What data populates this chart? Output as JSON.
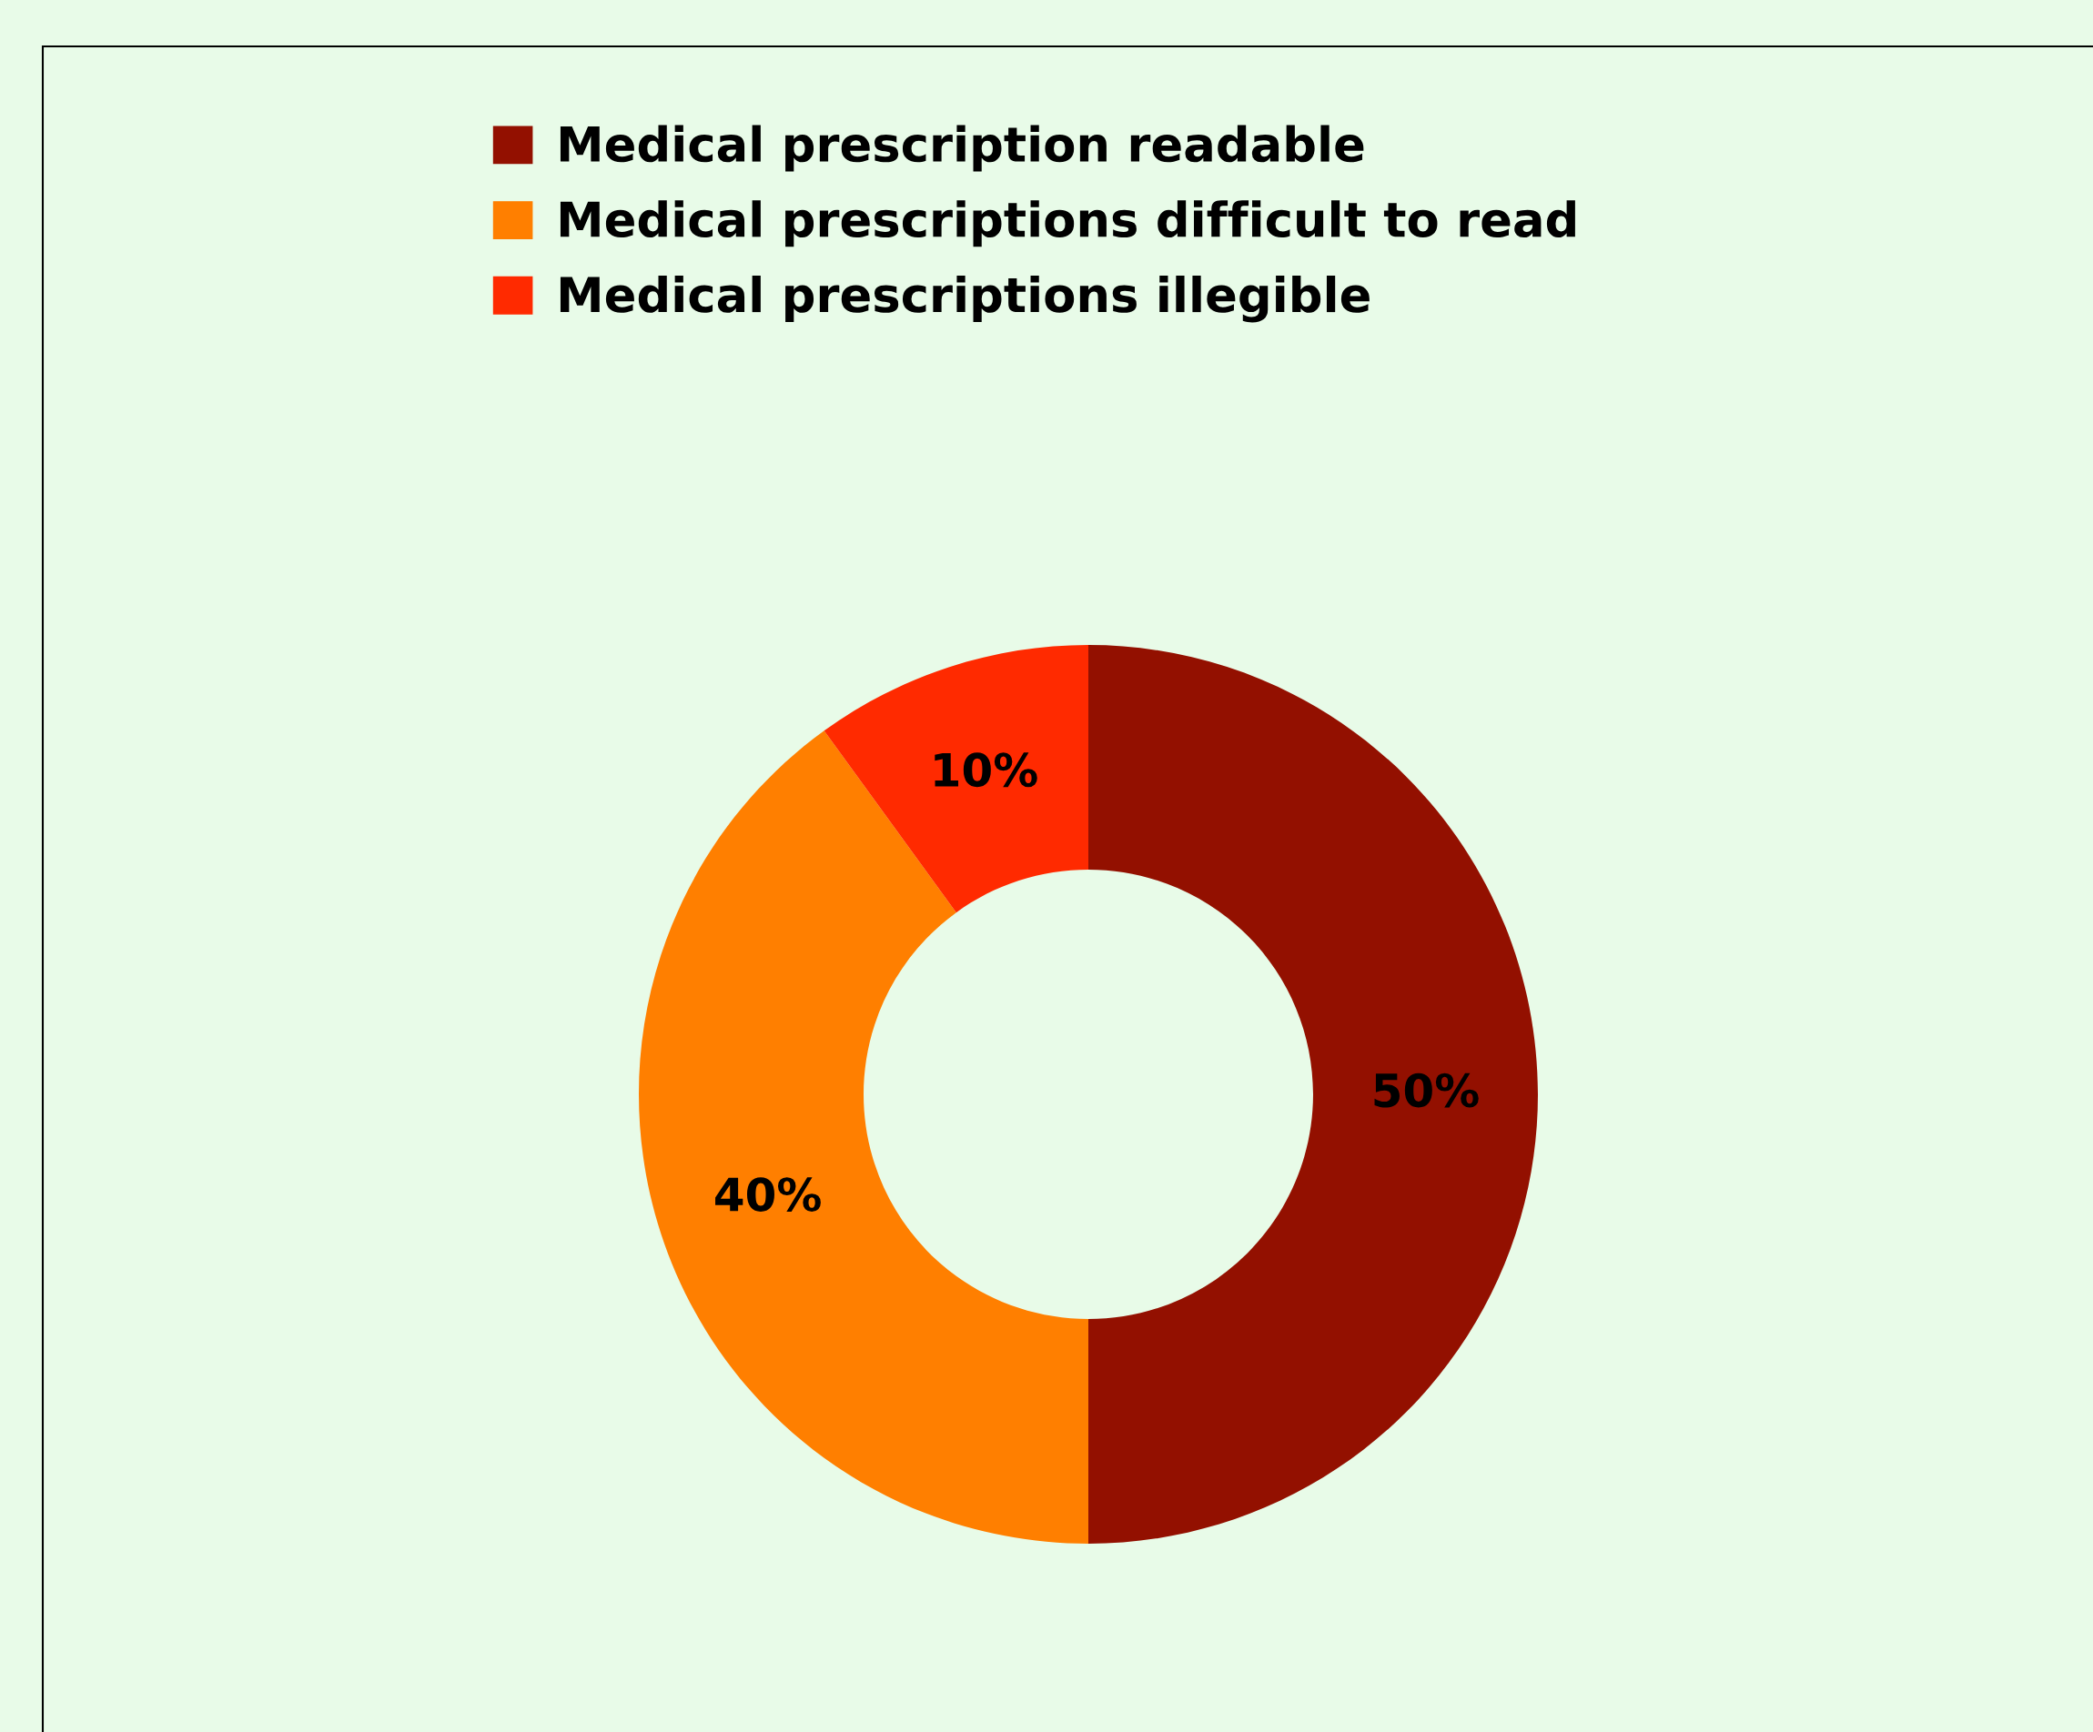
{
  "chart_data": {
    "type": "donut",
    "categories": [
      "Medical prescription readable",
      "Medical prescriptions difficult to read",
      "Medical prescriptions illegible"
    ],
    "values": [
      50,
      40,
      10
    ],
    "colors": [
      "#931000",
      "#ff7f00",
      "#ff2a00"
    ],
    "value_labels": [
      "50%",
      "40%",
      "10%"
    ],
    "legend": "top"
  }
}
